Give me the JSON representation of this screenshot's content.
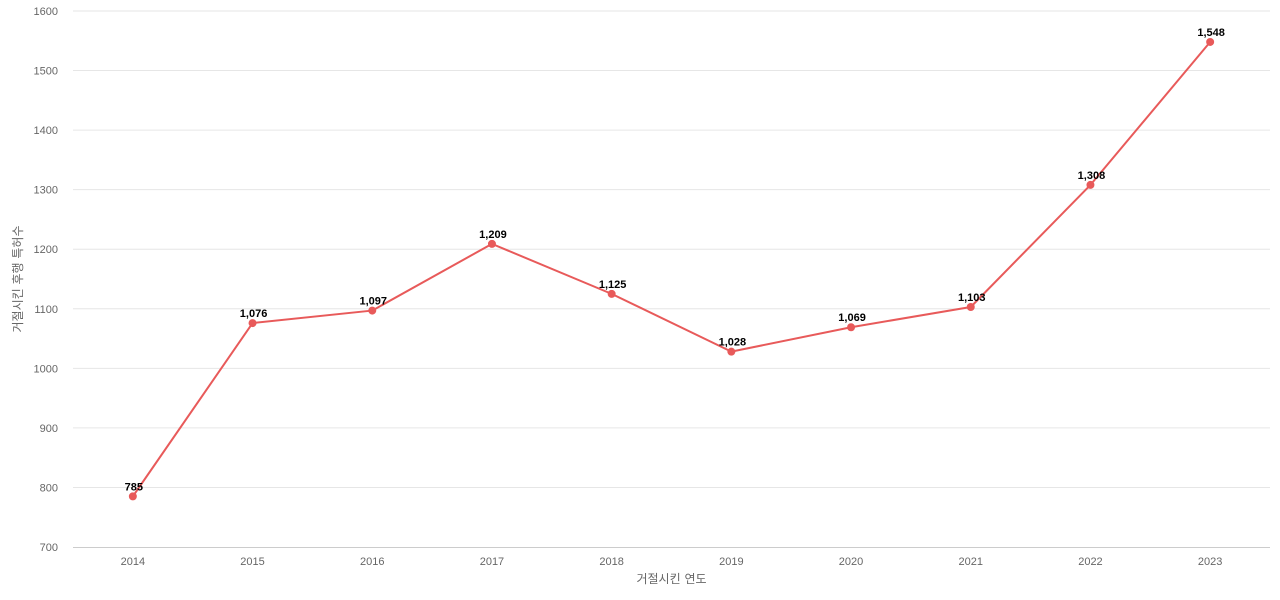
{
  "chart_data": {
    "type": "line",
    "title": "",
    "xlabel": "거절시킨 연도",
    "ylabel": "거절시킨 후행 특허수",
    "ylim": [
      700,
      1600
    ],
    "yticks": [
      700,
      800,
      900,
      1000,
      1100,
      1200,
      1300,
      1400,
      1500,
      1600
    ],
    "grid": true,
    "legend": "none",
    "categories": [
      "2014",
      "2015",
      "2016",
      "2017",
      "2018",
      "2019",
      "2020",
      "2021",
      "2022",
      "2023"
    ],
    "series": [
      {
        "values": [
          785,
          1076,
          1097,
          1209,
          1125,
          1028,
          1069,
          1103,
          1308,
          1548
        ],
        "labels": [
          "785",
          "1,076",
          "1,097",
          "1,209",
          "1,125",
          "1,028",
          "1,069",
          "1,103",
          "1,308",
          "1,548"
        ],
        "color": "#e85a5a"
      }
    ]
  }
}
